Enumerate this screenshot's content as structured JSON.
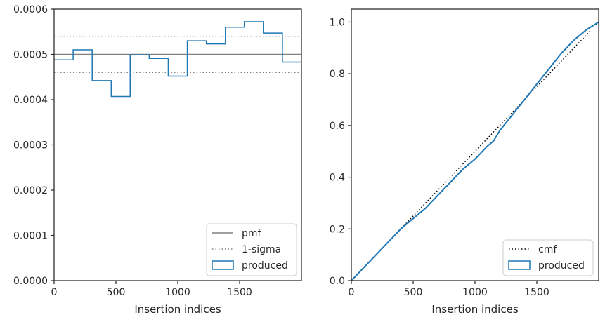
{
  "chart_data": [
    {
      "type": "line",
      "subtype": "step-histogram",
      "title": "",
      "xlabel": "Insertion indices",
      "ylabel": "",
      "xlim": [
        0,
        2000
      ],
      "ylim": [
        0,
        0.0006
      ],
      "xticks": [
        0,
        500,
        1000,
        1500
      ],
      "yticks": [
        0,
        0.0001,
        0.0002,
        0.0003,
        0.0004,
        0.0005,
        0.0006
      ],
      "xtick_labels": [
        "0",
        "500",
        "1000",
        "1500"
      ],
      "ytick_labels": [
        "0.0000",
        "0.0001",
        "0.0002",
        "0.0003",
        "0.0004",
        "0.0005",
        "0.0006"
      ],
      "grid": false,
      "legend_position": "lower-right",
      "series": [
        {
          "name": "pmf",
          "style": "solid",
          "color": "#808080",
          "x": [
            0,
            2000
          ],
          "values": [
            0.0005,
            0.0005
          ]
        },
        {
          "name": "1-sigma",
          "style": "dotted",
          "color": "#808080",
          "x": [
            0,
            2000
          ],
          "values": [
            0.00054,
            0.00054
          ],
          "lower_values": [
            0.00046,
            0.00046
          ]
        },
        {
          "name": "produced",
          "style": "step",
          "color": "#1f77b4",
          "bin_edges": [
            0,
            154,
            308,
            462,
            615,
            769,
            923,
            1077,
            1231,
            1385,
            1538,
            1692,
            1846,
            2000
          ],
          "values": [
            0.000488,
            0.00051,
            0.000442,
            0.000407,
            0.000499,
            0.000491,
            0.000452,
            0.00053,
            0.000523,
            0.00056,
            0.000572,
            0.000547,
            0.000483
          ]
        }
      ]
    },
    {
      "type": "line",
      "subtype": "step-cumulative",
      "title": "",
      "xlabel": "Insertion indices",
      "ylabel": "",
      "xlim": [
        0,
        2000
      ],
      "ylim": [
        0,
        1.05
      ],
      "xticks": [
        0,
        500,
        1000,
        1500
      ],
      "yticks": [
        0,
        0.2,
        0.4,
        0.6,
        0.8,
        1.0
      ],
      "xtick_labels": [
        "0",
        "500",
        "1000",
        "1500"
      ],
      "ytick_labels": [
        "0.0",
        "0.2",
        "0.4",
        "0.6",
        "0.8",
        "1.0"
      ],
      "grid": false,
      "legend_position": "lower-right",
      "series": [
        {
          "name": "cmf",
          "style": "dotted",
          "color": "#000000",
          "x": [
            0,
            2000
          ],
          "values": [
            0,
            1.0
          ]
        },
        {
          "name": "produced",
          "style": "step",
          "color": "#1f77b4",
          "x": [
            0,
            100,
            200,
            300,
            400,
            500,
            600,
            700,
            800,
            900,
            1000,
            1100,
            1150,
            1200,
            1300,
            1400,
            1500,
            1600,
            1700,
            1800,
            1900,
            2000
          ],
          "values": [
            0,
            0.05,
            0.1,
            0.15,
            0.2,
            0.24,
            0.28,
            0.33,
            0.38,
            0.43,
            0.47,
            0.52,
            0.54,
            0.58,
            0.64,
            0.7,
            0.76,
            0.82,
            0.88,
            0.93,
            0.97,
            1.0
          ]
        }
      ]
    }
  ]
}
